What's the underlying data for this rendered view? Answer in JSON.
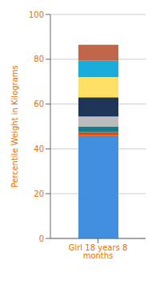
{
  "chart_data": {
    "type": "bar",
    "stacked": true,
    "categories": [
      "Girl 18 years 8 months"
    ],
    "series": [
      {
        "color": "#4190E0",
        "values": [
          46.0
        ]
      },
      {
        "color": "#E84B00",
        "values": [
          1.5
        ]
      },
      {
        "color": "#1A7A8A",
        "values": [
          2.5
        ]
      },
      {
        "color": "#BBBBBB",
        "values": [
          4.5
        ]
      },
      {
        "color": "#1E3557",
        "values": [
          8.5
        ]
      },
      {
        "color": "#FFE066",
        "values": [
          9.0
        ]
      },
      {
        "color": "#1AADDB",
        "values": [
          7.5
        ]
      },
      {
        "color": "#C0664A",
        "values": [
          7.0
        ]
      }
    ],
    "ylabel": "Percentile Weight in Kilograms",
    "ylim": [
      0,
      100
    ],
    "yticks": [
      0,
      20,
      40,
      60,
      80,
      100
    ],
    "grid": true
  }
}
